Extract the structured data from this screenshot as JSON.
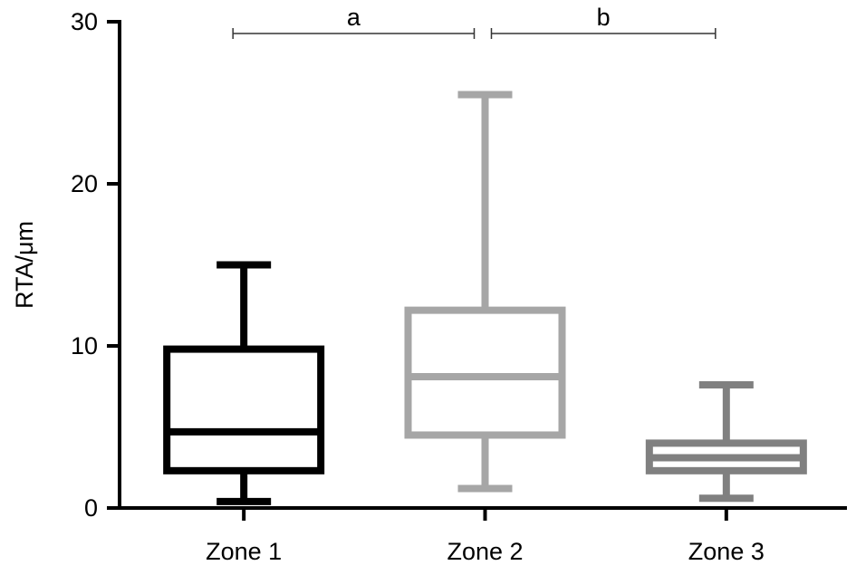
{
  "chart_data": {
    "type": "box",
    "title": "",
    "xlabel": "",
    "ylabel": "RTA/μm",
    "ylim": [
      0,
      30
    ],
    "yticks": [
      0,
      10,
      20,
      30
    ],
    "categories": [
      "Zone 1",
      "Zone 2",
      "Zone 3"
    ],
    "boxes": [
      {
        "category": "Zone 1",
        "min": 0.4,
        "q1": 2.3,
        "median": 4.7,
        "q3": 9.8,
        "max": 15.0,
        "color": "#000000"
      },
      {
        "category": "Zone 2",
        "min": 1.2,
        "q1": 4.5,
        "median": 8.1,
        "q3": 12.2,
        "max": 25.5,
        "color": "#a6a6a6"
      },
      {
        "category": "Zone 3",
        "min": 0.6,
        "q1": 2.3,
        "median": 3.1,
        "q3": 4.0,
        "max": 7.6,
        "color": "#808080"
      }
    ],
    "significance": [
      {
        "label": "a",
        "from": "Zone 1",
        "to": "Zone 2"
      },
      {
        "label": "b",
        "from": "Zone 2",
        "to": "Zone 3"
      }
    ],
    "grid": false,
    "legend": "none"
  }
}
